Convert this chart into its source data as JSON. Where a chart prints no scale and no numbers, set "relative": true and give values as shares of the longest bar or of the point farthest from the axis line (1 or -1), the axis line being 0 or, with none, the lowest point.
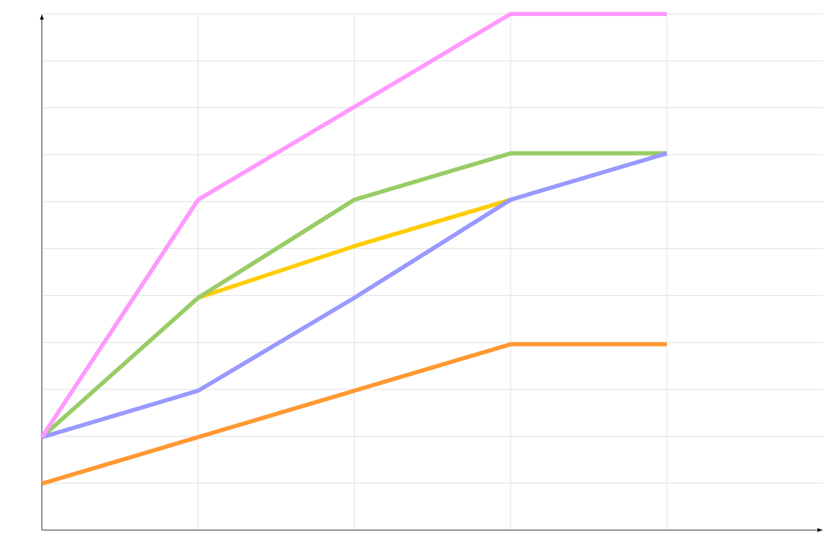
{
  "chart_data": {
    "type": "line",
    "relative": true,
    "grid": true,
    "marker": "none",
    "line_style": "solid",
    "categories": [
      null,
      null,
      null,
      null,
      null
    ],
    "series": [
      {
        "color": "#ffcc00",
        "values": [
          null,
          0.45,
          0.55,
          0.64,
          null
        ]
      },
      {
        "color": "#99cc66",
        "values": [
          0.18,
          0.45,
          0.64,
          0.73,
          0.73
        ]
      },
      {
        "color": "#9999ff",
        "values": [
          0.18,
          0.27,
          0.45,
          0.64,
          0.73
        ]
      },
      {
        "color": "#ff9933",
        "values": [
          0.09,
          0.18,
          0.27,
          0.36,
          0.36
        ]
      },
      {
        "color": "#ff99ff",
        "values": [
          0.18,
          0.64,
          0.82,
          1,
          1
        ]
      }
    ]
  }
}
